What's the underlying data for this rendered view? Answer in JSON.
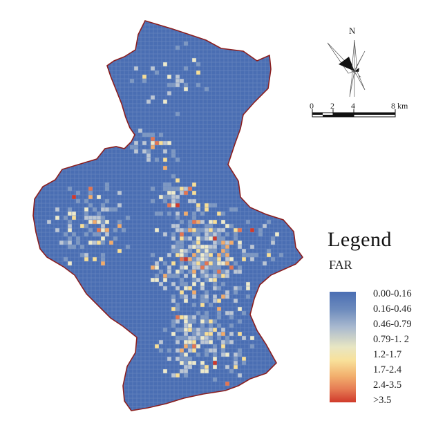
{
  "map": {
    "north_label": "N",
    "scale_labels": [
      "0",
      "2",
      "4",
      "8 km"
    ],
    "legend_title": "Legend",
    "legend_subtitle": "FAR",
    "classes": [
      {
        "label": "0.00-0.16",
        "color": "#4a6eb3"
      },
      {
        "label": "0.16-0.46",
        "color": "#7e98c2"
      },
      {
        "label": "0.46-0.79",
        "color": "#bcc6d3"
      },
      {
        "label": "0.79-1. 2",
        "color": "#eeeacb"
      },
      {
        "label": "1.2-1.7",
        "color": "#f8de95"
      },
      {
        "label": "1.7-2.4",
        "color": "#f1ab6a"
      },
      {
        "label": "2.4-3.5",
        "color": "#e47550"
      },
      {
        "label": ">3.5",
        "color": "#d03a2b"
      }
    ],
    "boundary_color": "#8b1f1f",
    "background_class_color": "#4a6eb3"
  }
}
